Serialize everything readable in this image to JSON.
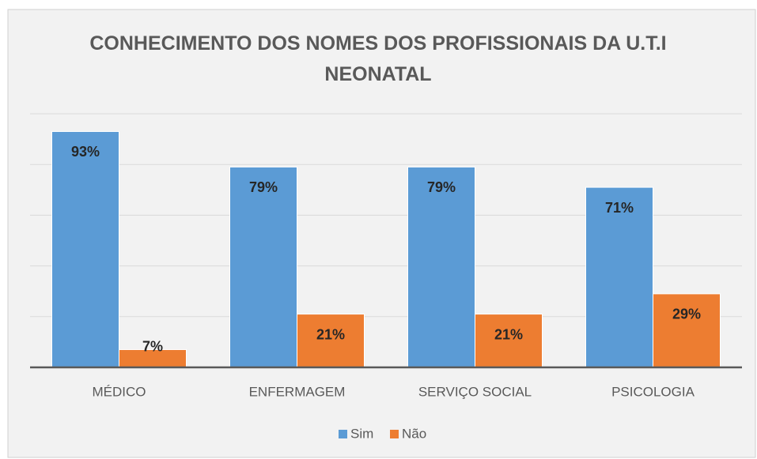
{
  "chart_data": {
    "type": "bar",
    "title": "CONHECIMENTO DOS NOMES DOS PROFISSIONAIS DA U.T.I NEONATAL",
    "categories": [
      "MÉDICO",
      "ENFERMAGEM",
      "SERVIÇO SOCIAL",
      "PSICOLOGIA"
    ],
    "series": [
      {
        "name": "Sim",
        "color": "#5b9bd5",
        "values": [
          93,
          79,
          79,
          71
        ],
        "value_labels": [
          "93%",
          "79%",
          "79%",
          "71%"
        ]
      },
      {
        "name": "Não",
        "color": "#ed7d31",
        "values": [
          7,
          21,
          21,
          29
        ],
        "value_labels": [
          "7%",
          "21%",
          "21%",
          "29%"
        ]
      }
    ],
    "ylim": [
      0,
      100
    ],
    "yticks": [
      0,
      20,
      40,
      60,
      80,
      100
    ],
    "grid": true,
    "legend": "bottom"
  }
}
